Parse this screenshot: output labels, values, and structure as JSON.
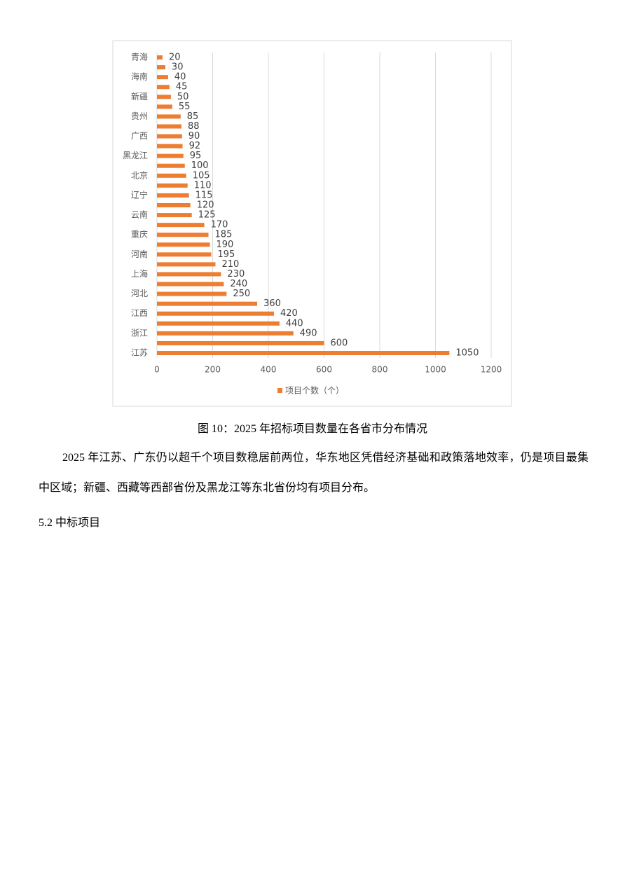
{
  "chart_data": {
    "type": "bar",
    "orientation": "horizontal",
    "categories": [
      "青海",
      null,
      "海南",
      null,
      "新疆",
      null,
      "贵州",
      null,
      "广西",
      null,
      "黑龙江",
      null,
      "北京",
      null,
      "辽宁",
      null,
      "云南",
      null,
      "重庆",
      null,
      "河南",
      null,
      "上海",
      null,
      "河北",
      null,
      "江西",
      null,
      "浙江",
      null,
      "江苏"
    ],
    "series": [
      {
        "name": "项目个数（个）",
        "color": "#ed7d31",
        "values": [
          20,
          30,
          40,
          45,
          50,
          55,
          85,
          88,
          90,
          92,
          95,
          100,
          105,
          110,
          115,
          120,
          125,
          170,
          185,
          190,
          195,
          210,
          230,
          240,
          250,
          360,
          420,
          440,
          490,
          600,
          1050
        ]
      }
    ],
    "xlim": [
      0,
      1200
    ],
    "xticks": [
      0,
      200,
      400,
      600,
      800,
      1000,
      1200
    ],
    "grid": true,
    "legend": "bottom"
  },
  "caption": "图 10：2025  年招标项目数量在各省市分布情况",
  "paragraph": "2025 年江苏、广东仍以超千个项目数稳居前两位，华东地区凭借经济基础和政策落地效率，仍是项目最集中区域；新疆、西藏等西部省份及黑龙江等东北省份均有项目分布。",
  "heading": "5.2  中标项目"
}
